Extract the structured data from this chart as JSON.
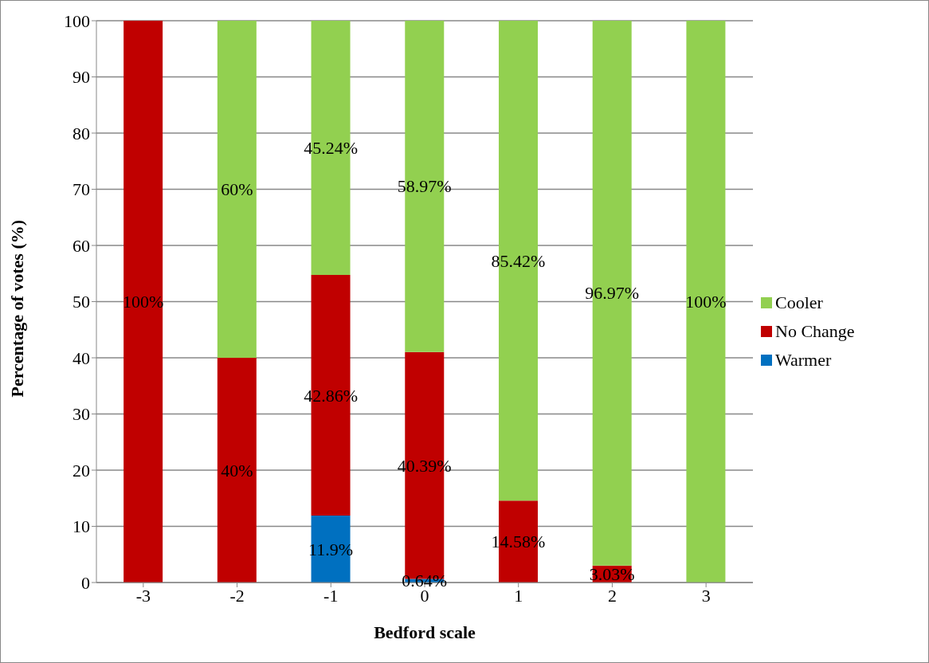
{
  "chart_data": {
    "type": "bar",
    "stacked": true,
    "xlabel": "Bedford scale",
    "ylabel": "Percentage of votes  (%)",
    "categories": [
      "-3",
      "-2",
      "-1",
      "0",
      "1",
      "2",
      "3"
    ],
    "series": [
      {
        "name": "Warmer",
        "color": "#0070c0",
        "values": [
          0,
          0,
          11.9,
          0.64,
          0,
          0,
          0
        ],
        "value_labels": [
          null,
          null,
          "11.9%",
          "0.64%",
          null,
          null,
          null
        ]
      },
      {
        "name": "No Change",
        "color": "#c00000",
        "values": [
          100,
          40,
          42.86,
          40.39,
          14.58,
          3.03,
          0
        ],
        "value_labels": [
          "100%",
          "40%",
          "42.86%",
          "40.39%",
          "14.58%",
          "3.03%",
          null
        ]
      },
      {
        "name": "Cooler",
        "color": "#92d050",
        "values": [
          0,
          60,
          45.24,
          58.97,
          85.42,
          96.97,
          100
        ],
        "value_labels": [
          null,
          "60%",
          "45.24%",
          "58.97%",
          "85.42%",
          "96.97%",
          "100%"
        ]
      }
    ],
    "ylim": [
      0,
      100
    ],
    "yticks": [
      0,
      10,
      20,
      30,
      40,
      50,
      60,
      70,
      80,
      90,
      100
    ],
    "grid": "y",
    "legend": "right"
  }
}
